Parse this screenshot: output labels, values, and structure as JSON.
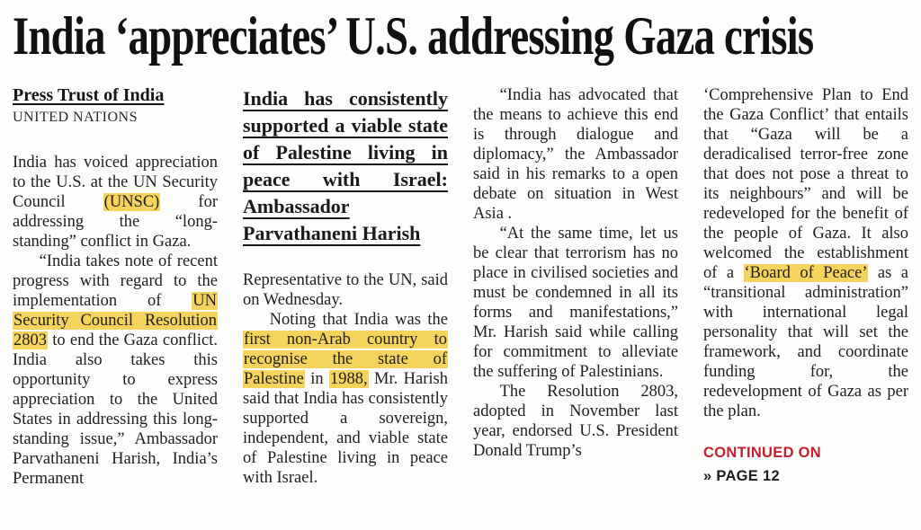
{
  "headline": "India ‘appreciates’ U.S. addressing Gaza crisis",
  "colors": {
    "highlight": "#f6d35c",
    "continued_red": "#c2212f",
    "text": "#1d1d1d"
  },
  "byline": {
    "author": "Press Trust of India",
    "dateline": "UNITED NATIONS"
  },
  "pull_quote": "India has consistently supported a viable state of Palestine living in peace with Israel: Ambassador Parvathaneni Harish",
  "continued": {
    "label": "CONTINUED ON",
    "page": "» PAGE 12"
  },
  "columns": [
    {
      "paragraphs": [
        {
          "indent": false,
          "segments": [
            {
              "t": "India has voiced appreciation to the U.S. at the UN Security Council "
            },
            {
              "t": "(UNSC)",
              "h": true
            },
            {
              "t": " for addressing the “long-standing” conflict in Gaza."
            }
          ]
        },
        {
          "indent": true,
          "segments": [
            {
              "t": "“India takes note of recent progress with regard to the implementation of "
            },
            {
              "t": "UN Security Council Resolution 2803",
              "h": true
            },
            {
              "t": " to end the Gaza conflict. India also takes this opportunity to express appreciation to the United States in addressing this long-standing issue,” Ambassador Parvathaneni Harish, India’s Permanent"
            }
          ]
        }
      ]
    },
    {
      "paragraphs": [
        {
          "indent": false,
          "segments": [
            {
              "t": "Representative to the UN, said on Wednesday."
            }
          ]
        },
        {
          "indent": true,
          "segments": [
            {
              "t": "Noting that India was the "
            },
            {
              "t": "first non-Arab country to recognise the state of Palestine",
              "h": true
            },
            {
              "t": " in "
            },
            {
              "t": "1988,",
              "h": true
            },
            {
              "t": " Mr. Harish said that India has consistently supported a sovereign, independent, and viable state of Palestine living in peace with Israel."
            }
          ]
        }
      ]
    },
    {
      "paragraphs": [
        {
          "indent": true,
          "segments": [
            {
              "t": "“India has advocated that the means to achieve this end is through dialogue and diplomacy,” the Ambassador said in his remarks to a open debate on situation in West Asia ."
            }
          ]
        },
        {
          "indent": true,
          "segments": [
            {
              "t": "“At the same time, let us be clear that terrorism has no place in civilised societies and must be condemned in all its forms and manifestations,” Mr. Harish said while calling for commitment to alleviate the suffering of Palestinians."
            }
          ]
        },
        {
          "indent": true,
          "segments": [
            {
              "t": "The Resolution 2803, adopted in November last year, endorsed U.S. President Donald Trump’s"
            }
          ]
        }
      ]
    },
    {
      "paragraphs": [
        {
          "indent": false,
          "segments": [
            {
              "t": "‘Comprehensive Plan to End the Gaza Conflict’ that entails that “Gaza will be a deradicalised terror-free zone that does not pose a threat to its neighbours” and will be redeveloped for the benefit of the people of Gaza. It also welcomed the establishment of a "
            },
            {
              "t": "‘Board of Peace’",
              "h": true
            },
            {
              "t": " as a “transitional administration” with international legal personality that will set the framework, and coordinate funding for, the redevelopment of Gaza as per the plan."
            }
          ]
        }
      ]
    }
  ]
}
